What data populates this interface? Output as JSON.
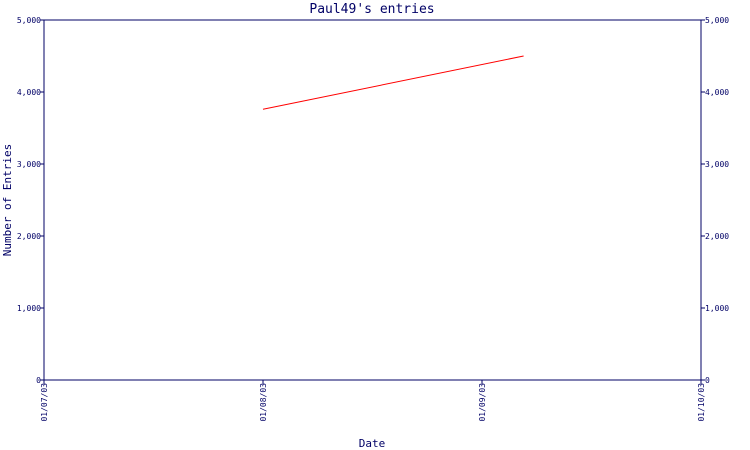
{
  "chart_data": {
    "type": "line",
    "title": "Paul49's entries",
    "xlabel": "Date",
    "ylabel": "Number of Entries",
    "x_ticks": [
      "01/07/03",
      "01/08/03",
      "01/09/03",
      "01/10/03"
    ],
    "x_range": [
      "01/07/03",
      "01/10/03"
    ],
    "ylim": [
      0,
      5000
    ],
    "y_ticks": [
      0,
      1000,
      2000,
      3000,
      4000,
      5000
    ],
    "y_tick_labels": [
      "0",
      "1,000",
      "2,000",
      "3,000",
      "4,000",
      "5,000"
    ],
    "series": [
      {
        "x": [
          "01/08/03",
          "01/09/03 + 0.19"
        ],
        "y": [
          3760,
          4500
        ]
      }
    ],
    "grid": false,
    "axis_color": "#000066",
    "line_color": "#ff0000"
  }
}
